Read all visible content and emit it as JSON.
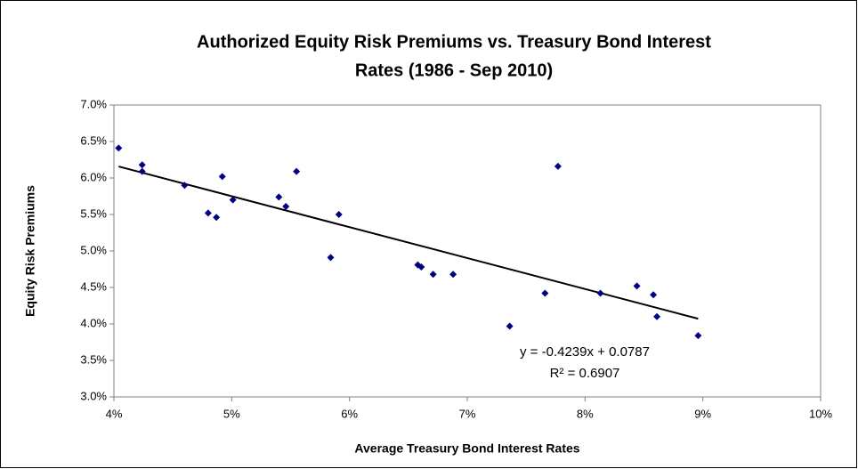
{
  "chart_data": {
    "type": "scatter",
    "title_lines": [
      "Authorized Equity Risk Premiums vs. Treasury Bond Interest",
      "Rates (1986 - Sep 2010)"
    ],
    "x_label": "Average Treasury Bond Interest Rates",
    "y_label": "Equity Risk Premiums",
    "x": [
      4.04,
      4.24,
      4.24,
      4.6,
      4.92,
      5.01,
      4.8,
      4.87,
      5.4,
      5.46,
      5.55,
      5.91,
      5.84,
      6.58,
      6.61,
      6.71,
      6.88,
      7.36,
      7.66,
      7.77,
      8.13,
      8.44,
      8.58,
      8.61,
      8.96
    ],
    "values": [
      6.41,
      6.18,
      6.09,
      5.9,
      6.02,
      5.7,
      5.52,
      5.46,
      5.74,
      5.61,
      6.09,
      5.5,
      4.91,
      4.81,
      4.78,
      4.68,
      4.68,
      3.97,
      4.42,
      6.16,
      4.42,
      4.52,
      4.4,
      4.1,
      3.84
    ],
    "color": "#000080",
    "trendline": {
      "slope": -0.4239,
      "intercept": 0.0787,
      "equation": "y = -0.4239x + 0.0787",
      "r2": "R² = 0.6907",
      "color": "#000000"
    },
    "xlim": [
      4,
      10
    ],
    "xticks": [
      {
        "value": 4,
        "label": "4%"
      },
      {
        "value": 5,
        "label": "5%"
      },
      {
        "value": 6,
        "label": "6%"
      },
      {
        "value": 7,
        "label": "7%"
      },
      {
        "value": 8,
        "label": "8%"
      },
      {
        "value": 9,
        "label": "9%"
      },
      {
        "value": 10,
        "label": "10%"
      }
    ],
    "ylim": [
      3,
      7
    ],
    "yticks": [
      {
        "value": 3,
        "label": "3.0%"
      },
      {
        "value": 3.5,
        "label": "3.5%"
      },
      {
        "value": 4,
        "label": "4.0%"
      },
      {
        "value": 4.5,
        "label": "4.5%"
      },
      {
        "value": 5,
        "label": "5.0%"
      },
      {
        "value": 5.5,
        "label": "5.5%"
      },
      {
        "value": 6,
        "label": "6.0%"
      },
      {
        "value": 6.5,
        "label": "6.5%"
      },
      {
        "value": 7,
        "label": "7.0%"
      }
    ]
  }
}
